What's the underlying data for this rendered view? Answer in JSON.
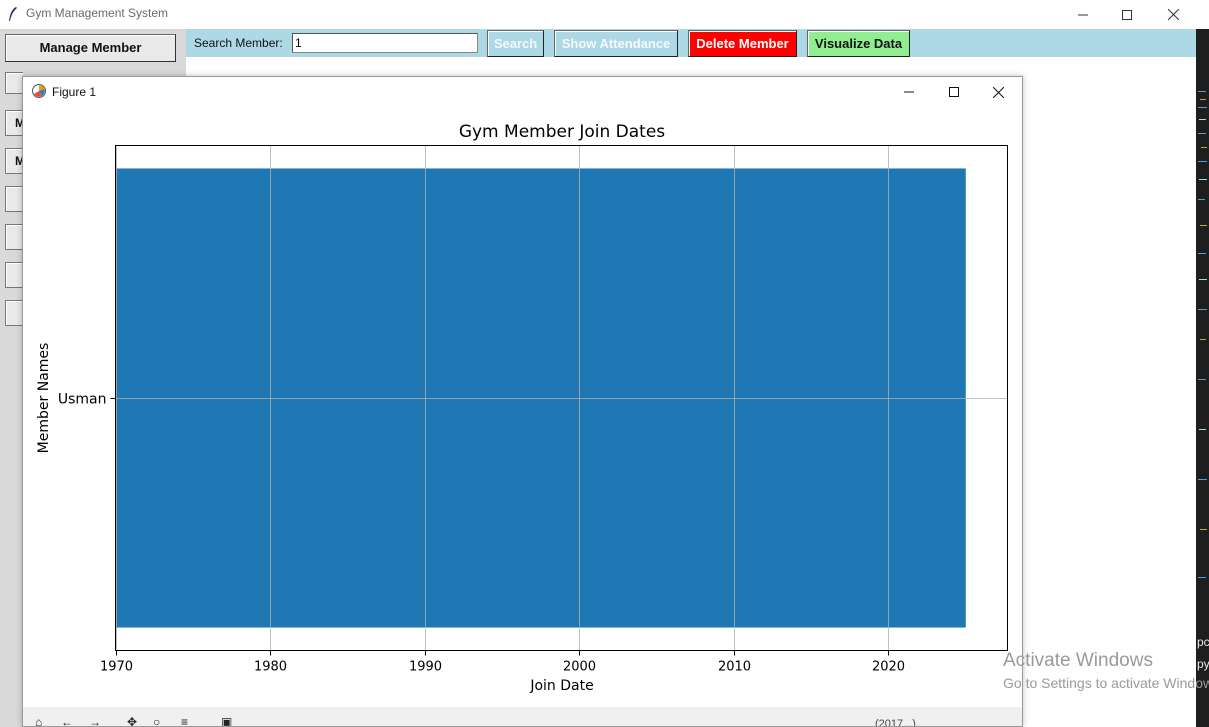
{
  "app": {
    "title": "Gym Management System",
    "sidebar": {
      "manage_member_label": "Manage Member",
      "stubs": [
        "",
        "M",
        "M",
        "",
        "",
        "",
        ""
      ]
    },
    "toolbar": {
      "search_label": "Search Member:",
      "search_value": "1",
      "search_button": "Search",
      "attendance_button": "Show Attendance",
      "delete_button": "Delete Member",
      "visualize_button": "Visualize Data"
    },
    "right_strip_glyphs": [
      "pc",
      "py"
    ]
  },
  "figure_window": {
    "title": "Figure 1",
    "toolbar_icons": [
      "home-icon",
      "back-icon",
      "forward-icon",
      "pan-icon",
      "zoom-icon",
      "configure-icon",
      "save-icon"
    ],
    "coord_readout": "(2017...)"
  },
  "chart_data": {
    "type": "bar",
    "orientation": "horizontal",
    "title": "Gym Member Join Dates",
    "xlabel": "Join Date",
    "ylabel": "Member Names",
    "categories": [
      "Usman"
    ],
    "bars": [
      {
        "label": "Usman",
        "start": 1970,
        "end": 2025
      }
    ],
    "xlim": [
      1970,
      2027.7
    ],
    "xticks": [
      1970,
      1980,
      1990,
      2000,
      2010,
      2020
    ],
    "ylim": [
      -0.55,
      0.55
    ],
    "bar_height": 1.0,
    "bar_color": "#1f77b4",
    "grid": true
  },
  "watermark": {
    "line1": "Activate Windows",
    "line2": "Go to Settings to activate Windows."
  }
}
